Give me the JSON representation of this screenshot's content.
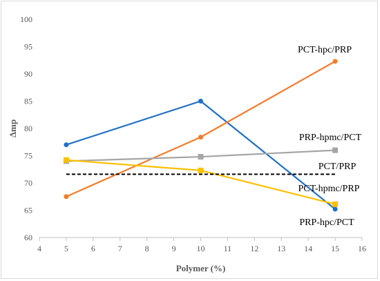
{
  "chart_data": {
    "type": "line",
    "xlabel": "Polymer (%)",
    "ylabel": "Δmp",
    "xlim": [
      4,
      16
    ],
    "ylim": [
      60,
      100
    ],
    "xticks": [
      4,
      5,
      6,
      7,
      8,
      9,
      10,
      11,
      12,
      13,
      14,
      15,
      16
    ],
    "yticks": [
      60,
      65,
      70,
      75,
      80,
      85,
      90,
      95,
      100
    ],
    "grid": false,
    "legend": "none (inline labels)",
    "series": [
      {
        "name": "PRP-hpc/PCT",
        "color": "#1f6fc5",
        "marker": "circle",
        "x": [
          5,
          10,
          15
        ],
        "y": [
          77.0,
          85.0,
          65.2
        ]
      },
      {
        "name": "PCT-hpc/PRP",
        "color": "#f47b2a",
        "marker": "circle",
        "x": [
          5,
          10,
          15
        ],
        "y": [
          67.5,
          78.4,
          92.3
        ]
      },
      {
        "name": "PRP-hpmc/PCT",
        "color": "#a5a5a5",
        "marker": "square",
        "x": [
          5,
          10,
          15
        ],
        "y": [
          74.0,
          74.8,
          76.0
        ]
      },
      {
        "name": "PCT-hpmc/PRP",
        "color": "#ffc000",
        "marker": "square",
        "x": [
          5,
          10,
          15
        ],
        "y": [
          74.2,
          72.3,
          66.1
        ]
      },
      {
        "name": "PCT/PRP",
        "color": "#000000",
        "marker": "none",
        "dash": true,
        "x": [
          5,
          15
        ],
        "y": [
          71.6,
          71.6
        ]
      }
    ],
    "annotations": [
      "PCT-hpc/PRP",
      "PRP-hpmc/PCT",
      "PCT/PRP",
      "PCT-hpmc/PRP",
      "PRP-hpc/PCT"
    ]
  }
}
